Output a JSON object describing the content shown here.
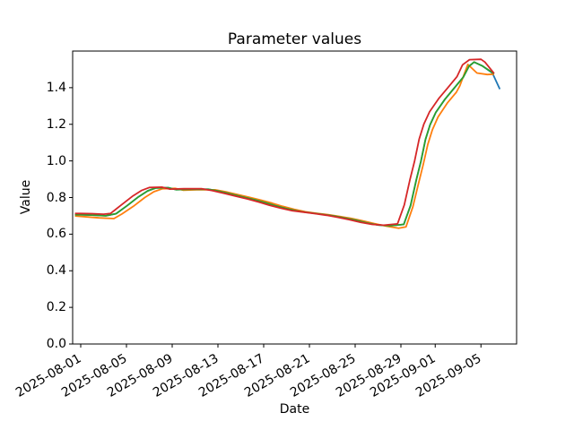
{
  "chart_data": {
    "type": "line",
    "title": "Parameter values",
    "xlabel": "Date",
    "ylabel": "Value",
    "x_unit": "days since 2025-08-01",
    "x_start_date": "2025-08-01",
    "xlim_days": [
      -0.71,
      38.12
    ],
    "ylim": [
      0,
      1.6
    ],
    "grid": false,
    "legend": "none",
    "yticks": [
      "0.0",
      "0.2",
      "0.4",
      "0.6",
      "0.8",
      "1.0",
      "1.2",
      "1.4"
    ],
    "ytick_values": [
      0.0,
      0.2,
      0.4,
      0.6,
      0.8,
      1.0,
      1.2,
      1.4
    ],
    "xticks": [
      {
        "label": "2025-08-01",
        "day": 0
      },
      {
        "label": "2025-08-05",
        "day": 4
      },
      {
        "label": "2025-08-09",
        "day": 8
      },
      {
        "label": "2025-08-13",
        "day": 12
      },
      {
        "label": "2025-08-17",
        "day": 16
      },
      {
        "label": "2025-08-21",
        "day": 20
      },
      {
        "label": "2025-08-25",
        "day": 24
      },
      {
        "label": "2025-08-29",
        "day": 28
      },
      {
        "label": "2025-09-01",
        "day": 31
      },
      {
        "label": "2025-09-05",
        "day": 35
      }
    ],
    "series": [
      {
        "name": "blue",
        "color": "#1f77b4",
        "points": [
          [
            -0.5,
            0.706
          ],
          [
            0,
            0.706
          ],
          [
            1,
            0.704
          ],
          [
            2.2,
            0.7
          ],
          [
            3.1,
            0.712
          ],
          [
            4.05,
            0.755
          ],
          [
            5.05,
            0.804
          ],
          [
            5.85,
            0.836
          ],
          [
            6.55,
            0.852
          ],
          [
            7.65,
            0.854
          ],
          [
            8.35,
            0.843
          ],
          [
            9.55,
            0.845
          ],
          [
            11.15,
            0.845
          ],
          [
            12.05,
            0.835
          ],
          [
            13.15,
            0.819
          ],
          [
            14.15,
            0.804
          ],
          [
            15.15,
            0.789
          ],
          [
            16.15,
            0.772
          ],
          [
            17.05,
            0.755
          ],
          [
            18.05,
            0.739
          ],
          [
            19.05,
            0.725
          ],
          [
            20.05,
            0.717
          ],
          [
            21.05,
            0.709
          ],
          [
            22.05,
            0.7
          ],
          [
            23.05,
            0.689
          ],
          [
            24.05,
            0.676
          ],
          [
            25.05,
            0.661
          ],
          [
            26.05,
            0.65
          ],
          [
            27.05,
            0.646
          ],
          [
            28.25,
            0.653
          ],
          [
            28.85,
            0.757
          ],
          [
            29.35,
            0.897
          ],
          [
            29.75,
            0.997
          ],
          [
            30.15,
            1.117
          ],
          [
            30.55,
            1.197
          ],
          [
            31.05,
            1.265
          ],
          [
            31.85,
            1.337
          ],
          [
            32.65,
            1.397
          ],
          [
            33.45,
            1.457
          ],
          [
            33.95,
            1.517
          ],
          [
            34.4,
            1.54
          ],
          [
            35.1,
            1.52
          ],
          [
            36.0,
            1.48
          ],
          [
            36.65,
            1.392
          ]
        ]
      },
      {
        "name": "orange",
        "color": "#ff7f0e",
        "points": [
          [
            -0.5,
            0.699
          ],
          [
            0.6,
            0.694
          ],
          [
            1.6,
            0.689
          ],
          [
            2.9,
            0.685
          ],
          [
            3.6,
            0.71
          ],
          [
            4.6,
            0.752
          ],
          [
            5.6,
            0.8
          ],
          [
            6.4,
            0.832
          ],
          [
            7.15,
            0.848
          ],
          [
            8.25,
            0.85
          ],
          [
            8.95,
            0.84
          ],
          [
            10.15,
            0.842
          ],
          [
            11.75,
            0.842
          ],
          [
            12.65,
            0.832
          ],
          [
            13.75,
            0.816
          ],
          [
            14.75,
            0.801
          ],
          [
            15.75,
            0.786
          ],
          [
            16.75,
            0.769
          ],
          [
            17.65,
            0.752
          ],
          [
            18.65,
            0.736
          ],
          [
            19.65,
            0.722
          ],
          [
            20.65,
            0.714
          ],
          [
            21.65,
            0.706
          ],
          [
            22.65,
            0.697
          ],
          [
            23.65,
            0.686
          ],
          [
            24.65,
            0.673
          ],
          [
            25.65,
            0.658
          ],
          [
            26.65,
            0.645
          ],
          [
            27.8,
            0.632
          ],
          [
            28.45,
            0.64
          ],
          [
            29.05,
            0.75
          ],
          [
            29.55,
            0.88
          ],
          [
            29.95,
            0.98
          ],
          [
            30.35,
            1.09
          ],
          [
            30.75,
            1.17
          ],
          [
            31.25,
            1.24
          ],
          [
            32.05,
            1.315
          ],
          [
            32.85,
            1.375
          ],
          [
            33.15,
            1.41
          ],
          [
            33.85,
            1.527
          ],
          [
            34.65,
            1.48
          ],
          [
            35.55,
            1.472
          ],
          [
            36.15,
            1.474
          ]
        ]
      },
      {
        "name": "green",
        "color": "#2ca02c",
        "points": [
          [
            -0.5,
            0.706
          ],
          [
            0,
            0.706
          ],
          [
            1,
            0.704
          ],
          [
            2.2,
            0.7
          ],
          [
            3.1,
            0.712
          ],
          [
            4.05,
            0.755
          ],
          [
            5.05,
            0.804
          ],
          [
            5.85,
            0.836
          ],
          [
            6.55,
            0.852
          ],
          [
            7.65,
            0.854
          ],
          [
            8.35,
            0.843
          ],
          [
            9.55,
            0.845
          ],
          [
            11.15,
            0.845
          ],
          [
            12.05,
            0.835
          ],
          [
            13.15,
            0.819
          ],
          [
            14.15,
            0.804
          ],
          [
            15.15,
            0.789
          ],
          [
            16.15,
            0.772
          ],
          [
            17.05,
            0.755
          ],
          [
            18.05,
            0.739
          ],
          [
            19.05,
            0.725
          ],
          [
            20.05,
            0.717
          ],
          [
            21.05,
            0.709
          ],
          [
            22.05,
            0.7
          ],
          [
            23.05,
            0.689
          ],
          [
            24.05,
            0.676
          ],
          [
            25.05,
            0.661
          ],
          [
            26.05,
            0.65
          ],
          [
            27.05,
            0.646
          ],
          [
            28.25,
            0.653
          ],
          [
            28.85,
            0.757
          ],
          [
            29.35,
            0.897
          ],
          [
            29.75,
            0.997
          ],
          [
            30.15,
            1.117
          ],
          [
            30.55,
            1.197
          ],
          [
            31.05,
            1.265
          ],
          [
            31.85,
            1.337
          ],
          [
            32.65,
            1.397
          ],
          [
            33.45,
            1.457
          ],
          [
            33.95,
            1.517
          ],
          [
            34.4,
            1.54
          ],
          [
            35.1,
            1.52
          ],
          [
            36.15,
            1.476
          ]
        ]
      },
      {
        "name": "red",
        "color": "#d62728",
        "points": [
          [
            -0.5,
            0.713
          ],
          [
            0,
            0.713
          ],
          [
            1,
            0.712
          ],
          [
            2,
            0.709
          ],
          [
            2.6,
            0.713
          ],
          [
            3.5,
            0.757
          ],
          [
            4.5,
            0.806
          ],
          [
            5.3,
            0.838
          ],
          [
            6.0,
            0.855
          ],
          [
            7.1,
            0.857
          ],
          [
            7.8,
            0.846
          ],
          [
            9.0,
            0.848
          ],
          [
            10.6,
            0.848
          ],
          [
            11.5,
            0.838
          ],
          [
            12.6,
            0.822
          ],
          [
            13.6,
            0.807
          ],
          [
            14.6,
            0.792
          ],
          [
            15.6,
            0.775
          ],
          [
            16.5,
            0.758
          ],
          [
            17.5,
            0.742
          ],
          [
            18.5,
            0.728
          ],
          [
            19.5,
            0.72
          ],
          [
            20.5,
            0.712
          ],
          [
            21.5,
            0.703
          ],
          [
            22.5,
            0.692
          ],
          [
            23.5,
            0.679
          ],
          [
            24.5,
            0.664
          ],
          [
            25.5,
            0.653
          ],
          [
            26.5,
            0.649
          ],
          [
            27.7,
            0.656
          ],
          [
            28.3,
            0.76
          ],
          [
            28.8,
            0.9
          ],
          [
            29.2,
            1.0
          ],
          [
            29.6,
            1.12
          ],
          [
            30.0,
            1.2
          ],
          [
            30.5,
            1.268
          ],
          [
            31.3,
            1.34
          ],
          [
            32.1,
            1.4
          ],
          [
            32.9,
            1.46
          ],
          [
            33.4,
            1.525
          ],
          [
            34.0,
            1.553
          ],
          [
            35.0,
            1.555
          ],
          [
            35.35,
            1.54
          ],
          [
            36.15,
            1.478
          ]
        ]
      }
    ],
    "style": {
      "background": "#ffffff",
      "spine_color": "#000000",
      "line_width": 1.8
    }
  }
}
